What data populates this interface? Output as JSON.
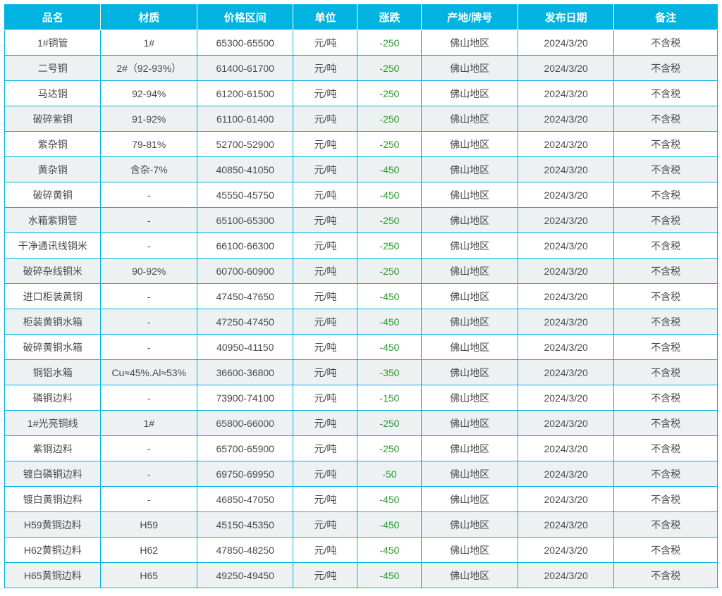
{
  "table": {
    "columns": [
      "品名",
      "材质",
      "价格区间",
      "单位",
      "涨跌",
      "产地/牌号",
      "发布日期",
      "备注"
    ],
    "header_bg": "#00b3e0",
    "header_fg": "#ffffff",
    "border_color": "#00b3e0",
    "row_bg_odd": "#ffffff",
    "row_bg_even": "#eef1f2",
    "text_color": "#4a4a4a",
    "change_color": "#2c9a2c",
    "col_widths_pct": [
      13.5,
      13.5,
      13.5,
      9,
      9,
      13.5,
      13.5,
      14.5
    ],
    "rows": [
      {
        "name": "1#铜管",
        "material": "1#",
        "price": "65300-65500",
        "unit": "元/吨",
        "change": "-250",
        "origin": "佛山地区",
        "date": "2024/3/20",
        "note": "不含税"
      },
      {
        "name": "二号铜",
        "material": "2#（92-93%）",
        "price": "61400-61700",
        "unit": "元/吨",
        "change": "-250",
        "origin": "佛山地区",
        "date": "2024/3/20",
        "note": "不含税"
      },
      {
        "name": "马达铜",
        "material": "92-94%",
        "price": "61200-61500",
        "unit": "元/吨",
        "change": "-250",
        "origin": "佛山地区",
        "date": "2024/3/20",
        "note": "不含税"
      },
      {
        "name": "破碎紫铜",
        "material": "91-92%",
        "price": "61100-61400",
        "unit": "元/吨",
        "change": "-250",
        "origin": "佛山地区",
        "date": "2024/3/20",
        "note": "不含税"
      },
      {
        "name": "紫杂铜",
        "material": "79-81%",
        "price": "52700-52900",
        "unit": "元/吨",
        "change": "-250",
        "origin": "佛山地区",
        "date": "2024/3/20",
        "note": "不含税"
      },
      {
        "name": "黄杂铜",
        "material": "含杂-7%",
        "price": "40850-41050",
        "unit": "元/吨",
        "change": "-450",
        "origin": "佛山地区",
        "date": "2024/3/20",
        "note": "不含税"
      },
      {
        "name": "破碎黄铜",
        "material": "-",
        "price": "45550-45750",
        "unit": "元/吨",
        "change": "-450",
        "origin": "佛山地区",
        "date": "2024/3/20",
        "note": "不含税"
      },
      {
        "name": "水箱紫铜管",
        "material": "-",
        "price": "65100-65300",
        "unit": "元/吨",
        "change": "-250",
        "origin": "佛山地区",
        "date": "2024/3/20",
        "note": "不含税"
      },
      {
        "name": "干净通讯线铜米",
        "material": "-",
        "price": "66100-66300",
        "unit": "元/吨",
        "change": "-250",
        "origin": "佛山地区",
        "date": "2024/3/20",
        "note": "不含税"
      },
      {
        "name": "破碎杂线铜米",
        "material": "90-92%",
        "price": "60700-60900",
        "unit": "元/吨",
        "change": "-250",
        "origin": "佛山地区",
        "date": "2024/3/20",
        "note": "不含税"
      },
      {
        "name": "进口柜装黄铜",
        "material": "-",
        "price": "47450-47650",
        "unit": "元/吨",
        "change": "-450",
        "origin": "佛山地区",
        "date": "2024/3/20",
        "note": "不含税"
      },
      {
        "name": "柜装黄铜水箱",
        "material": "-",
        "price": "47250-47450",
        "unit": "元/吨",
        "change": "-450",
        "origin": "佛山地区",
        "date": "2024/3/20",
        "note": "不含税"
      },
      {
        "name": "破碎黄铜水箱",
        "material": "-",
        "price": "40950-41150",
        "unit": "元/吨",
        "change": "-450",
        "origin": "佛山地区",
        "date": "2024/3/20",
        "note": "不含税"
      },
      {
        "name": "铜铝水箱",
        "material": "Cu≈45%.Al≈53%",
        "price": "36600-36800",
        "unit": "元/吨",
        "change": "-350",
        "origin": "佛山地区",
        "date": "2024/3/20",
        "note": "不含税"
      },
      {
        "name": "磷铜边料",
        "material": "-",
        "price": "73900-74100",
        "unit": "元/吨",
        "change": "-150",
        "origin": "佛山地区",
        "date": "2024/3/20",
        "note": "不含税"
      },
      {
        "name": "1#光亮铜线",
        "material": "1#",
        "price": "65800-66000",
        "unit": "元/吨",
        "change": "-250",
        "origin": "佛山地区",
        "date": "2024/3/20",
        "note": "不含税"
      },
      {
        "name": "紫铜边料",
        "material": "-",
        "price": "65700-65900",
        "unit": "元/吨",
        "change": "-250",
        "origin": "佛山地区",
        "date": "2024/3/20",
        "note": "不含税"
      },
      {
        "name": "镀白磷铜边料",
        "material": "-",
        "price": "69750-69950",
        "unit": "元/吨",
        "change": "-50",
        "origin": "佛山地区",
        "date": "2024/3/20",
        "note": "不含税"
      },
      {
        "name": "镀白黄铜边料",
        "material": "-",
        "price": "46850-47050",
        "unit": "元/吨",
        "change": "-450",
        "origin": "佛山地区",
        "date": "2024/3/20",
        "note": "不含税"
      },
      {
        "name": "H59黄铜边料",
        "material": "H59",
        "price": "45150-45350",
        "unit": "元/吨",
        "change": "-450",
        "origin": "佛山地区",
        "date": "2024/3/20",
        "note": "不含税"
      },
      {
        "name": "H62黄铜边料",
        "material": "H62",
        "price": "47850-48250",
        "unit": "元/吨",
        "change": "-450",
        "origin": "佛山地区",
        "date": "2024/3/20",
        "note": "不含税"
      },
      {
        "name": "H65黄铜边料",
        "material": "H65",
        "price": "49250-49450",
        "unit": "元/吨",
        "change": "-450",
        "origin": "佛山地区",
        "date": "2024/3/20",
        "note": "不含税"
      }
    ]
  }
}
